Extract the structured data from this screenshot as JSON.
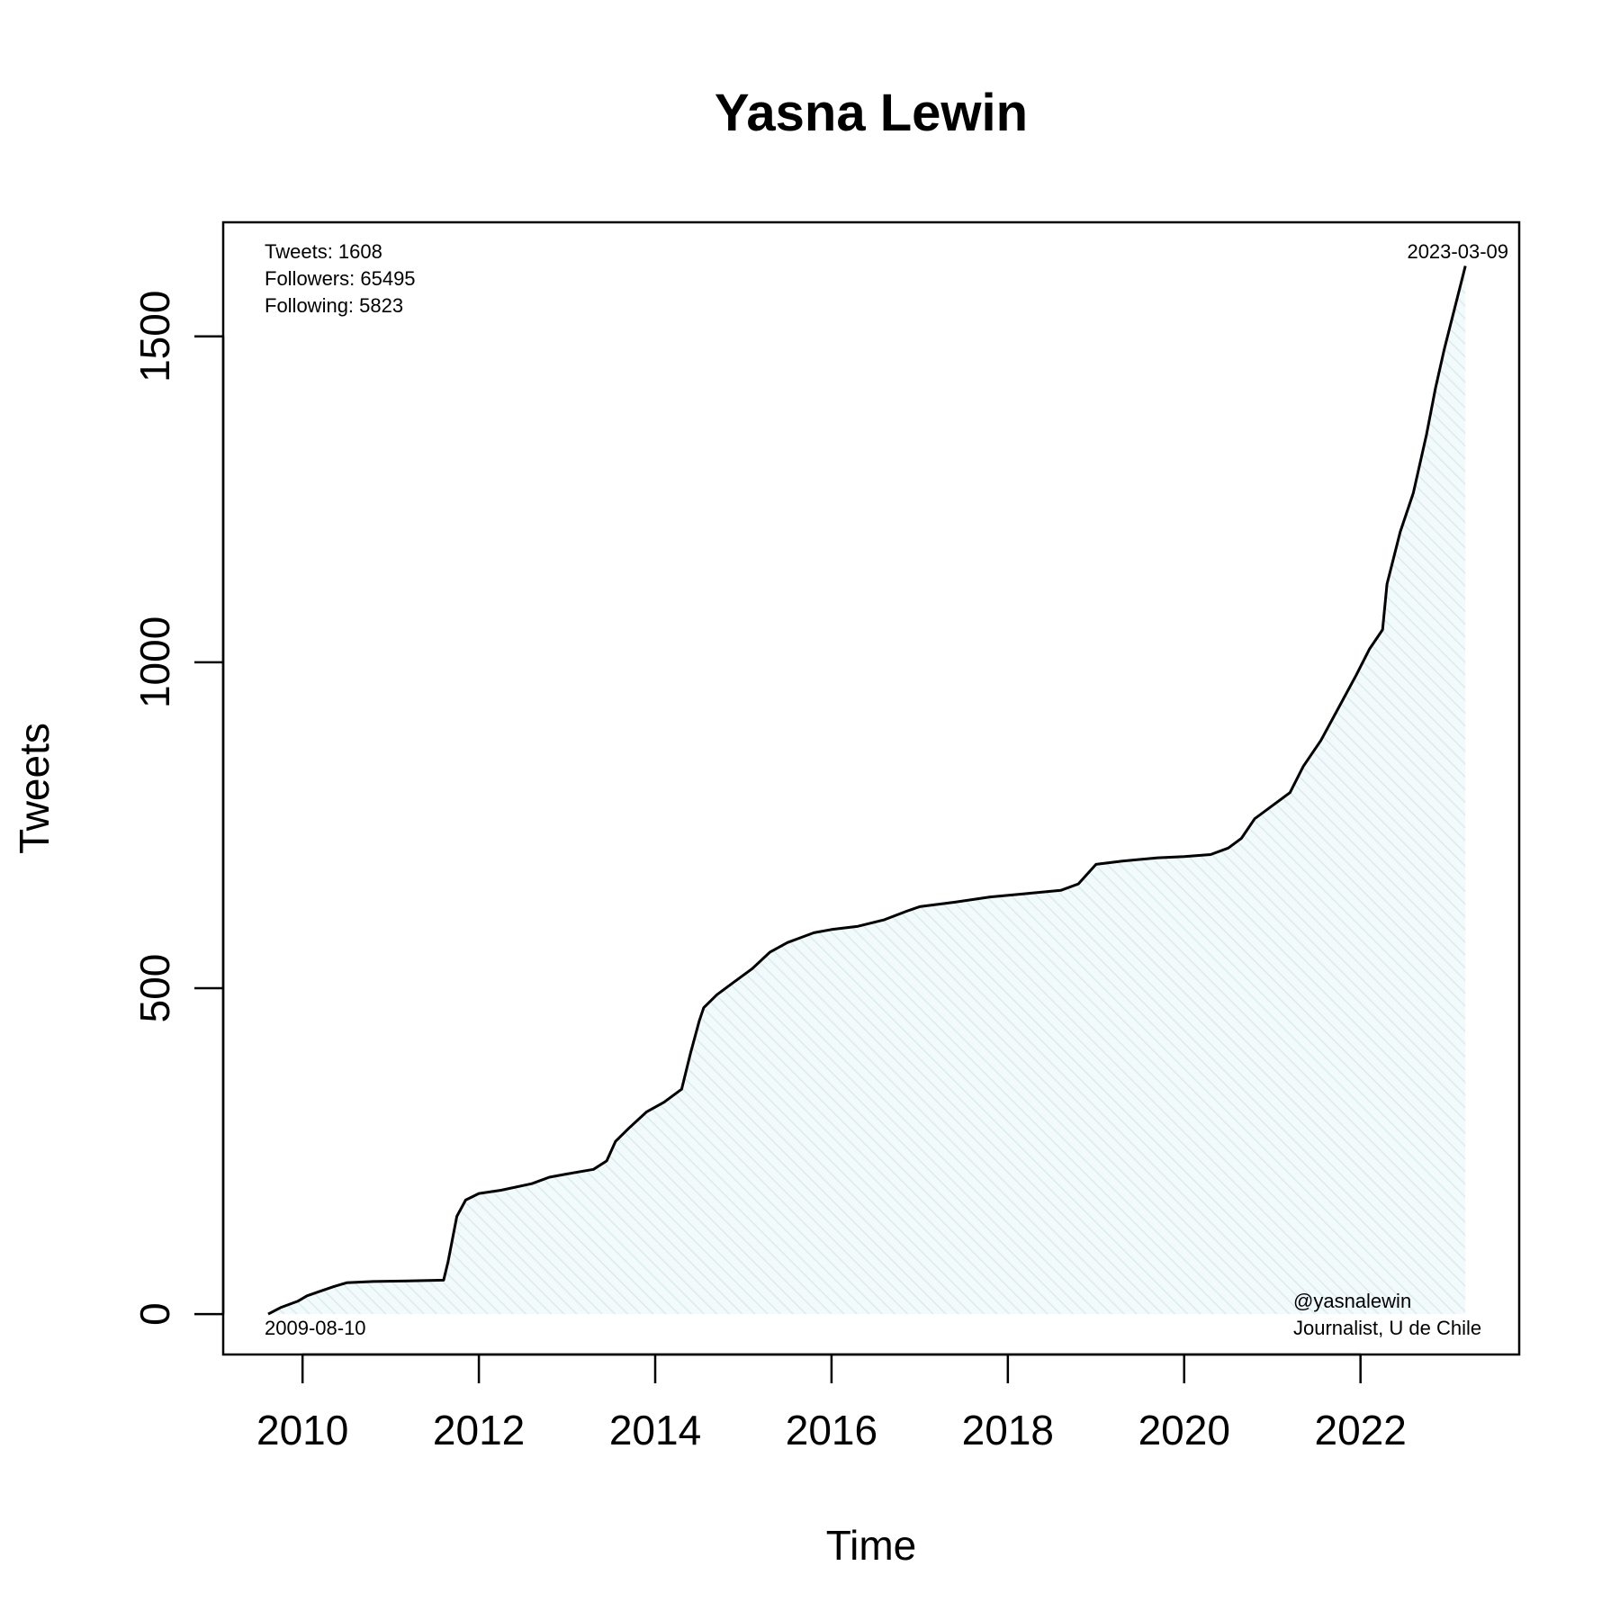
{
  "chart_data": {
    "type": "area",
    "title": "Yasna Lewin",
    "xlabel": "Time",
    "ylabel": "Tweets",
    "xlim": [
      2009.1,
      2023.8
    ],
    "ylim": [
      -62,
      1675
    ],
    "x_ticks": [
      2010,
      2012,
      2014,
      2016,
      2018,
      2020,
      2022
    ],
    "x_tick_labels": [
      "2010",
      "2012",
      "2014",
      "2016",
      "2018",
      "2020",
      "2022"
    ],
    "y_ticks": [
      0,
      500,
      1000,
      1500
    ],
    "y_tick_labels": [
      "0",
      "500",
      "1000",
      "1500"
    ],
    "grid": false,
    "legend": "none",
    "line_color": "#000000",
    "fill_color": "#e6f2f4",
    "annotations": {
      "stats_lines": [
        "Tweets: 1608",
        "Followers: 65495",
        "Following: 5823"
      ],
      "start_date": "2009-08-10",
      "end_date": "2023-03-09",
      "handle": "@yasnalewin",
      "bio": "Journalist, U de Chile"
    },
    "series": [
      {
        "x": [
          2009.61,
          2009.75,
          2009.95,
          2010.05,
          2010.2,
          2010.35,
          2010.5,
          2010.8,
          2011.2,
          2011.6,
          2011.65,
          2011.75,
          2011.85,
          2012.0,
          2012.25,
          2012.6,
          2012.8,
          2013.0,
          2013.3,
          2013.45,
          2013.55,
          2013.7,
          2013.9,
          2014.1,
          2014.3,
          2014.4,
          2014.5,
          2014.55,
          2014.7,
          2014.9,
          2015.1,
          2015.3,
          2015.5,
          2015.8,
          2016.0,
          2016.3,
          2016.6,
          2016.85,
          2017.0,
          2017.4,
          2017.8,
          2018.2,
          2018.6,
          2018.8,
          2019.0,
          2019.3,
          2019.7,
          2020.0,
          2020.3,
          2020.5,
          2020.65,
          2020.8,
          2021.0,
          2021.2,
          2021.35,
          2021.55,
          2021.75,
          2021.95,
          2022.1,
          2022.25,
          2022.3,
          2022.45,
          2022.6,
          2022.75,
          2022.85,
          2022.95,
          2023.1,
          2023.19
        ],
        "y": [
          0,
          10,
          20,
          28,
          35,
          42,
          48,
          50,
          51,
          52,
          80,
          150,
          175,
          185,
          190,
          200,
          210,
          215,
          222,
          235,
          265,
          285,
          310,
          325,
          345,
          400,
          450,
          470,
          490,
          510,
          530,
          555,
          570,
          585,
          590,
          595,
          605,
          618,
          625,
          632,
          640,
          645,
          650,
          660,
          690,
          695,
          700,
          702,
          705,
          715,
          730,
          760,
          780,
          800,
          840,
          880,
          930,
          980,
          1020,
          1050,
          1120,
          1200,
          1260,
          1350,
          1420,
          1480,
          1560,
          1608
        ]
      }
    ]
  }
}
